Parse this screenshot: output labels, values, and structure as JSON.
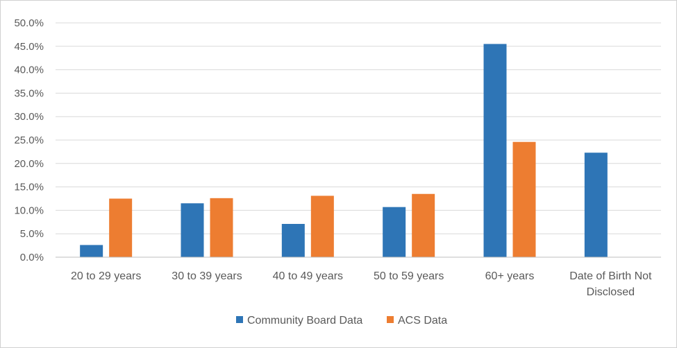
{
  "chart_data": {
    "type": "bar",
    "title": "",
    "xlabel": "",
    "ylabel": "",
    "categories": [
      [
        "20 to 29 years"
      ],
      [
        "30 to 39 years"
      ],
      [
        "40 to 49 years"
      ],
      [
        "50 to 59 years"
      ],
      [
        "60+ years"
      ],
      [
        "Date of Birth Not",
        "Disclosed"
      ]
    ],
    "series": [
      {
        "name": "Community Board Data",
        "color": "#2E75B6",
        "values": [
          0.026,
          0.115,
          0.071,
          0.107,
          0.455,
          0.223
        ]
      },
      {
        "name": "ACS Data",
        "color": "#ED7D31",
        "values": [
          0.125,
          0.126,
          0.131,
          0.135,
          0.246,
          null
        ]
      }
    ],
    "ylim": [
      0,
      0.5
    ],
    "yticks": [
      "0.0%",
      "5.0%",
      "10.0%",
      "15.0%",
      "20.0%",
      "25.0%",
      "30.0%",
      "35.0%",
      "40.0%",
      "45.0%",
      "50.0%"
    ],
    "grid": true,
    "legend_position": "bottom"
  }
}
